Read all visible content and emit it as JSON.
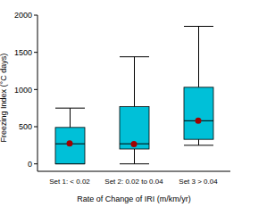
{
  "chart_data": {
    "type": "box",
    "x_label": "Rate of Change of IRI (m/km/yr)",
    "y_label": "Freezing Index (°C days)",
    "categories": [
      "Set 1: < 0.02",
      "Set 2: 0.02 to 0.04",
      "Set 3 > 0.04"
    ],
    "min": [
      0,
      0,
      250
    ],
    "q1": [
      0,
      200,
      330
    ],
    "median": [
      270,
      270,
      580
    ],
    "q3": [
      490,
      770,
      1030
    ],
    "max": [
      750,
      1440,
      1850
    ],
    "mean": [
      275,
      265,
      580
    ],
    "color": "#00c0d8",
    "marker": "circle",
    "ylim": [
      -100,
      2000
    ],
    "yticks": [
      0,
      500,
      1000,
      1500,
      2000
    ],
    "grid": false
  }
}
